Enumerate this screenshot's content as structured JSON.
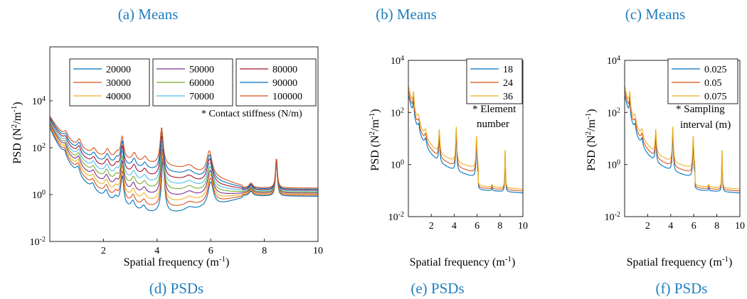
{
  "panels": [
    {
      "caption": "(a) Means"
    },
    {
      "caption": "(b) Means"
    },
    {
      "caption": "(c) Means"
    }
  ],
  "chart_data": [
    {
      "type": "line",
      "caption": "(d) PSDs",
      "xlabel": "Spatial frequency (m",
      "xlabel_sup": "-1",
      "xlabel_tail": ")",
      "ylabel": "PSD (N",
      "ylabel_sup1": "2",
      "ylabel_mid": "/m",
      "ylabel_sup2": "-1",
      "ylabel_tail": ")",
      "log_y": true,
      "xlim": [
        0,
        10
      ],
      "ylim": [
        0.01,
        2000000
      ],
      "xticks": [
        2,
        4,
        6,
        8,
        10
      ],
      "yticks": [
        {
          "base": "10",
          "exp": "-2",
          "v": 0.01
        },
        {
          "base": "10",
          "exp": "0",
          "v": 1
        },
        {
          "base": "10",
          "exp": "2",
          "v": 100
        },
        {
          "base": "10",
          "exp": "4",
          "v": 10000
        }
      ],
      "legend_location": "top-right",
      "legend_columns": 3,
      "annotation": "* Contact stiffness (N/m)",
      "series": [
        {
          "name": "20000",
          "color": "#0072bd"
        },
        {
          "name": "30000",
          "color": "#d95319"
        },
        {
          "name": "40000",
          "color": "#edb120"
        },
        {
          "name": "50000",
          "color": "#7e2f8e"
        },
        {
          "name": "60000",
          "color": "#77ac30"
        },
        {
          "name": "70000",
          "color": "#4dbeee"
        },
        {
          "name": "80000",
          "color": "#a2142f"
        },
        {
          "name": "90000",
          "color": "#0072bd"
        },
        {
          "name": "100000",
          "color": "#d95319"
        }
      ]
    },
    {
      "type": "line",
      "caption": "(e) PSDs",
      "xlabel": "Spatial frequency (m",
      "xlabel_sup": "-1",
      "xlabel_tail": ")",
      "ylabel": "PSD (N",
      "ylabel_sup1": "2",
      "ylabel_mid": "/m",
      "ylabel_sup2": "-1",
      "ylabel_tail": ")",
      "log_y": true,
      "xlim": [
        0,
        10
      ],
      "ylim": [
        0.01,
        10000
      ],
      "xticks": [
        2,
        4,
        6,
        8,
        10
      ],
      "yticks": [
        {
          "base": "10",
          "exp": "-2",
          "v": 0.01
        },
        {
          "base": "10",
          "exp": "0",
          "v": 1
        },
        {
          "base": "10",
          "exp": "2",
          "v": 100
        },
        {
          "base": "10",
          "exp": "4",
          "v": 10000
        }
      ],
      "legend_location": "top-right",
      "legend_columns": 1,
      "annotation_lines": [
        "* Element",
        "number"
      ],
      "series": [
        {
          "name": "18",
          "color": "#0072bd"
        },
        {
          "name": "24",
          "color": "#d95319"
        },
        {
          "name": "36",
          "color": "#edb120"
        }
      ]
    },
    {
      "type": "line",
      "caption": "(f) PSDs",
      "xlabel": "Spatial frequency (m",
      "xlabel_sup": "-1",
      "xlabel_tail": ")",
      "ylabel": "PSD (N",
      "ylabel_sup1": "2",
      "ylabel_mid": "/m",
      "ylabel_sup2": "-1",
      "ylabel_tail": ")",
      "log_y": true,
      "xlim": [
        0,
        10
      ],
      "ylim": [
        0.01,
        10000
      ],
      "xticks": [
        2,
        4,
        6,
        8,
        10
      ],
      "yticks": [
        {
          "base": "10",
          "exp": "-2",
          "v": 0.01
        },
        {
          "base": "10",
          "exp": "0",
          "v": 1
        },
        {
          "base": "10",
          "exp": "2",
          "v": 100
        },
        {
          "base": "10",
          "exp": "4",
          "v": 10000
        }
      ],
      "legend_location": "top-right",
      "legend_columns": 1,
      "annotation_lines": [
        "* Sampling",
        "interval (m)"
      ],
      "series": [
        {
          "name": "0.025",
          "color": "#0072bd"
        },
        {
          "name": "0.05",
          "color": "#d95319"
        },
        {
          "name": "0.075",
          "color": "#edb120"
        }
      ]
    }
  ]
}
